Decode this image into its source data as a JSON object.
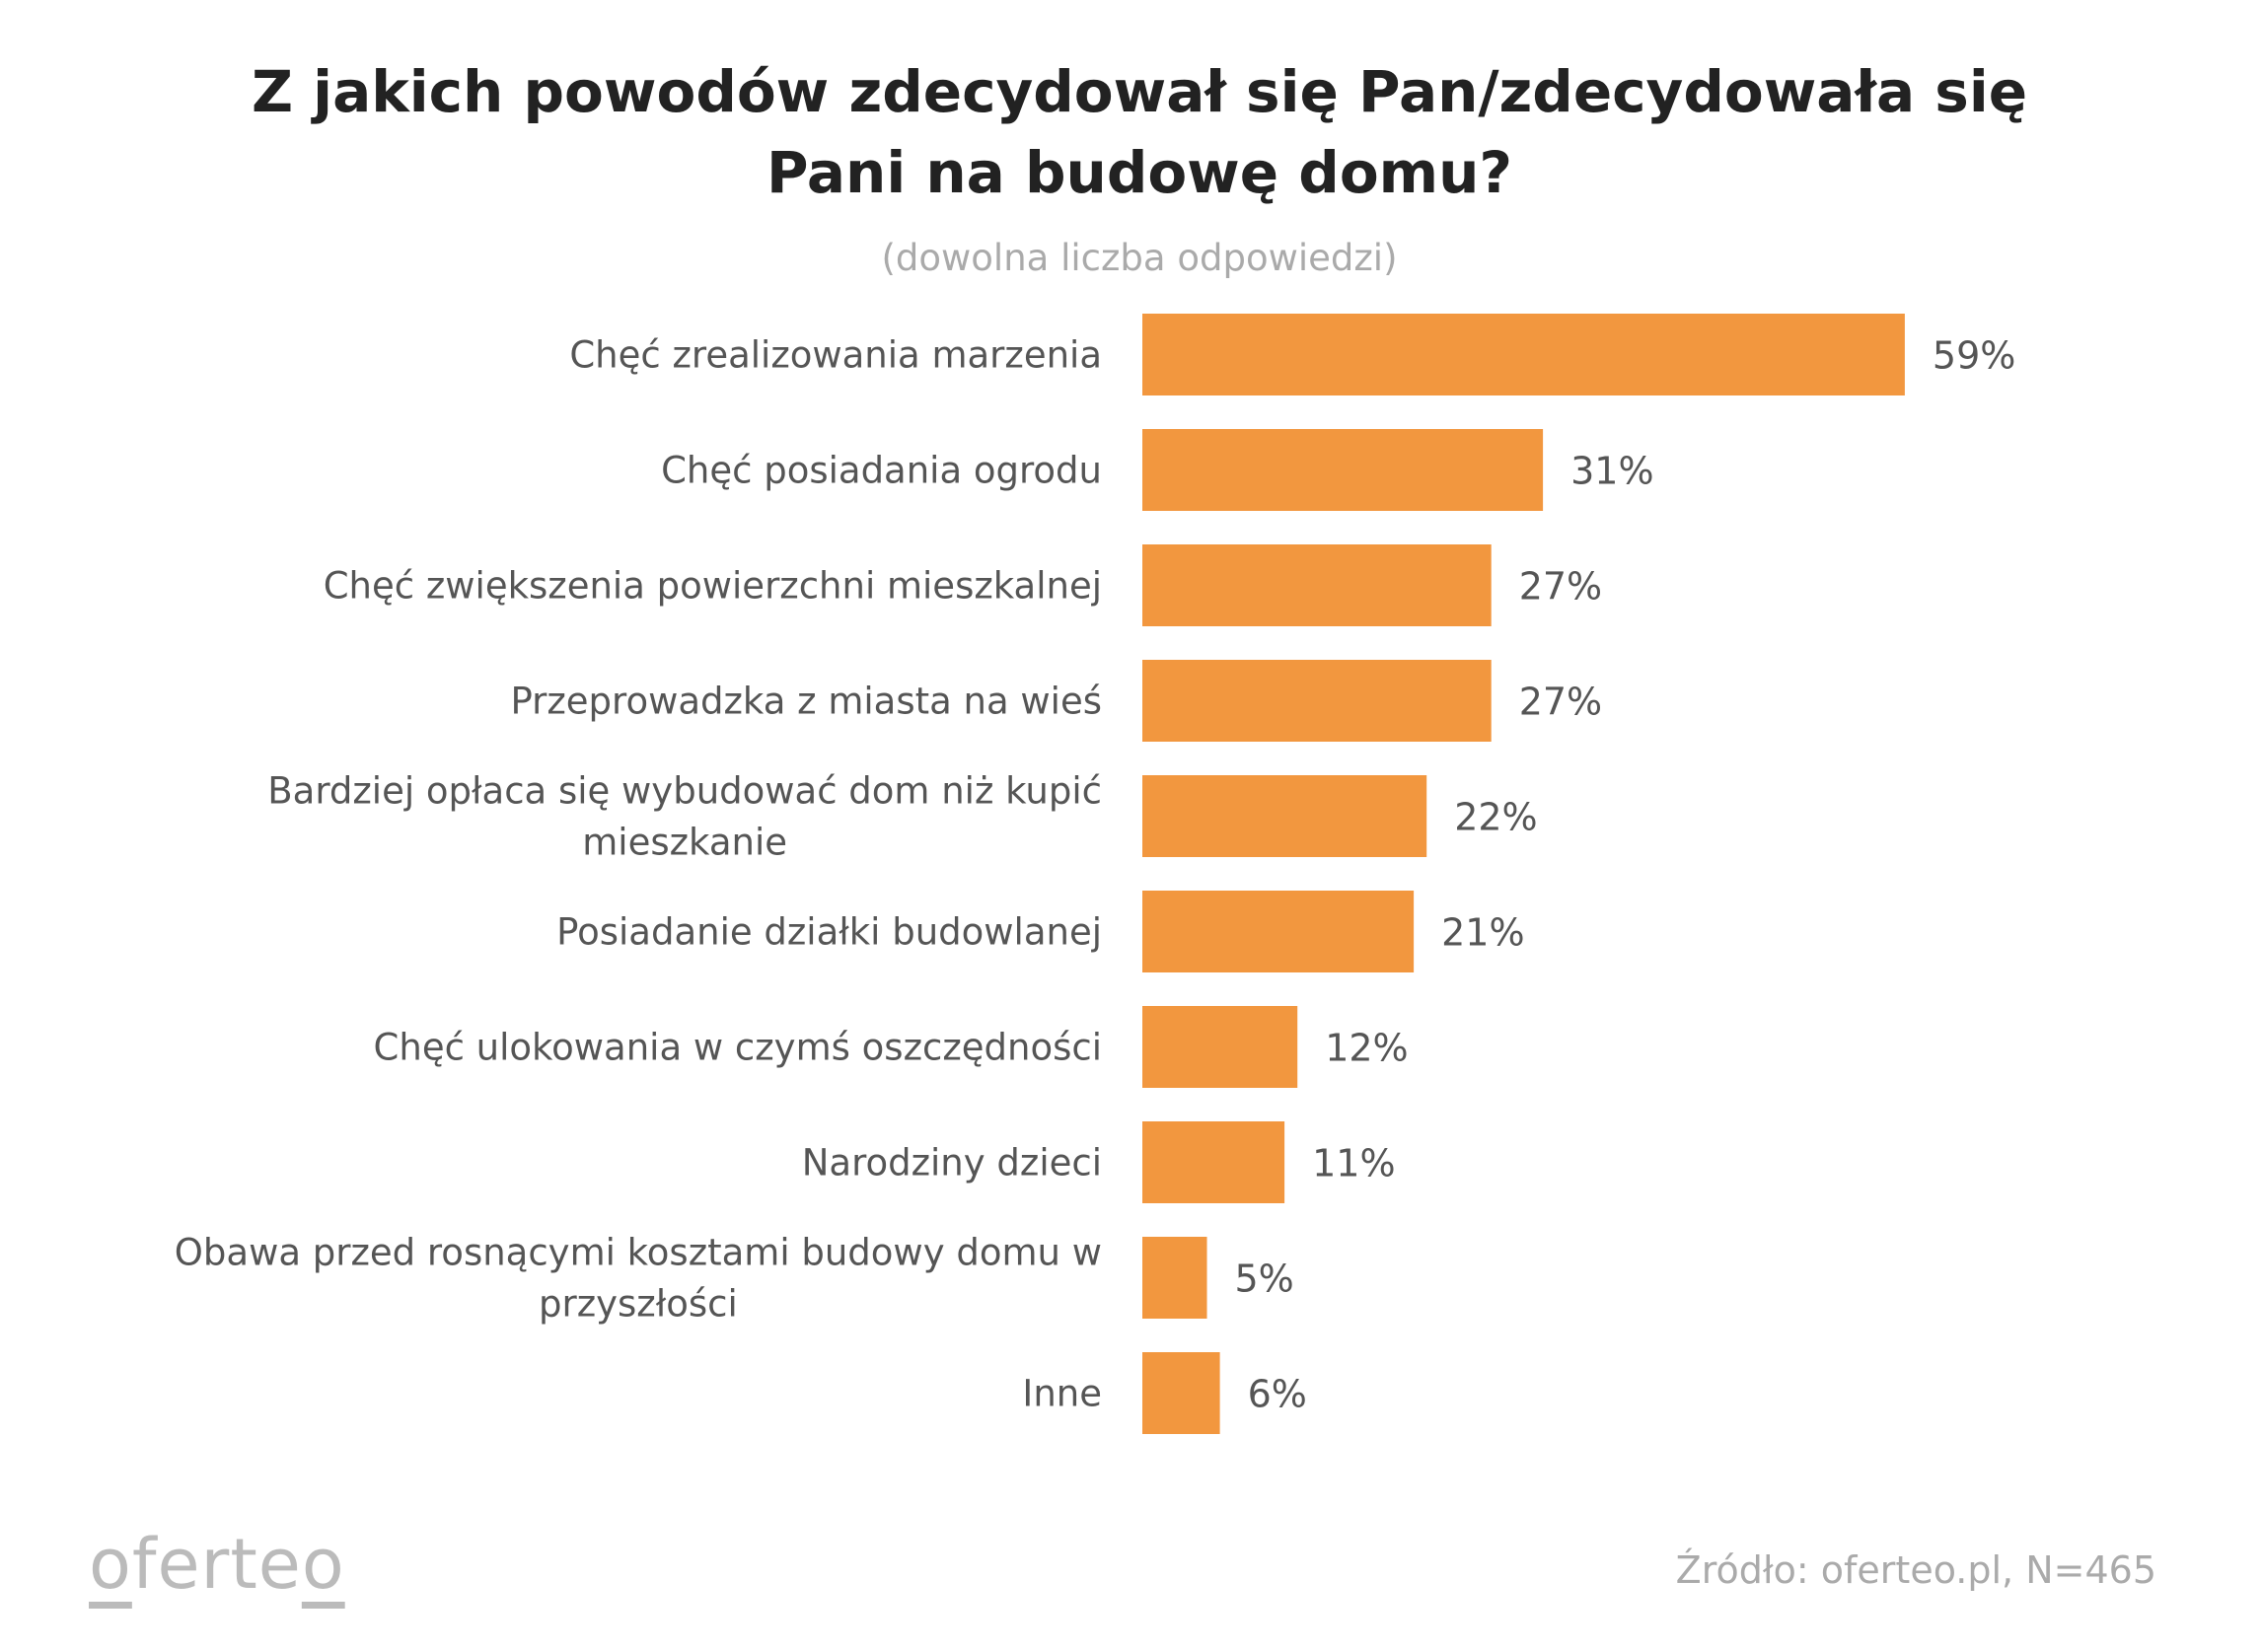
{
  "chart_data": {
    "type": "bar",
    "orientation": "horizontal",
    "title": "Z jakich powodów zdecydował się Pan/zdecydowała się Pani na budowę domu?",
    "title_lines": [
      "Z jakich powodów zdecydował się Pan/zdecydowała się",
      "Pani na budowę domu?"
    ],
    "subtitle": "(dowolna liczba odpowiedzi)",
    "categories": [
      [
        "Chęć zrealizowania marzenia"
      ],
      [
        "Chęć posiadania ogrodu"
      ],
      [
        "Chęć zwiększenia powierzchni mieszkalnej"
      ],
      [
        "Przeprowadzka z miasta na wieś"
      ],
      [
        "Bardziej opłaca się wybudować dom niż kupić",
        "mieszkanie"
      ],
      [
        "Posiadanie działki budowlanej"
      ],
      [
        "Chęć ulokowania w czymś oszczędności"
      ],
      [
        "Narodziny dzieci"
      ],
      [
        "Obawa przed rosnącymi kosztami budowy domu w",
        "przyszłości"
      ],
      [
        "Inne"
      ]
    ],
    "values": [
      59,
      31,
      27,
      27,
      22,
      21,
      12,
      11,
      5,
      6
    ],
    "data_labels": [
      "59%",
      "31%",
      "27%",
      "27%",
      "22%",
      "21%",
      "12%",
      "11%",
      "5%",
      "6%"
    ],
    "unit": "%",
    "grid": false,
    "legend": "none",
    "bar_color": "#F2973F",
    "label_color": "#555555"
  },
  "footer": {
    "logo": "oferteo",
    "source": "Źródło: oferteo.pl, N=465"
  }
}
